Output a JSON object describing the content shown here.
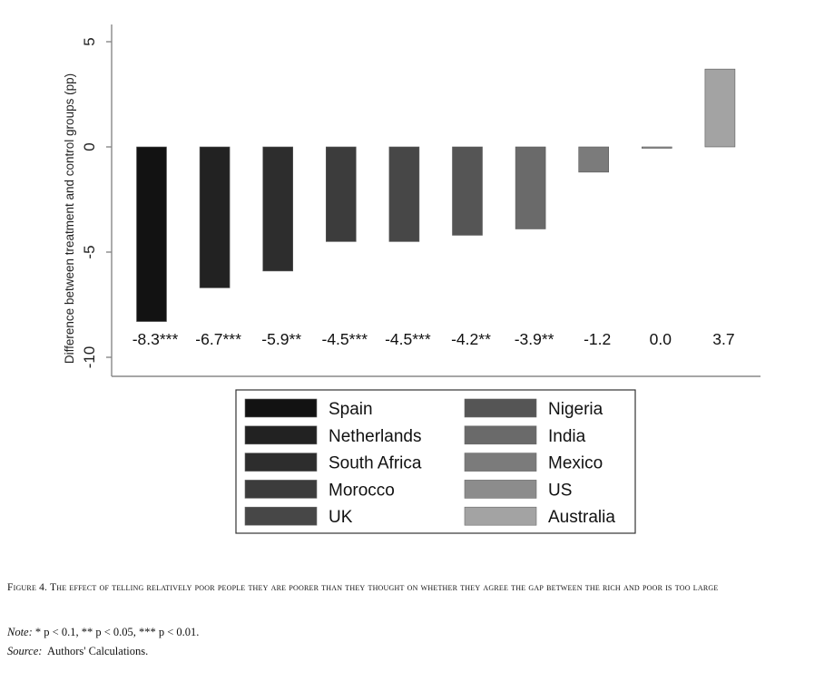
{
  "chart_data": {
    "type": "bar",
    "ylabel": "Difference between treatment and control groups (pp)",
    "ylim": [
      -10.8,
      5.9
    ],
    "yticks": [
      5,
      0,
      -5,
      -10
    ],
    "ytick_labels": [
      "5",
      "0",
      "-5",
      "-10"
    ],
    "categories": [
      "Spain",
      "Netherlands",
      "South Africa",
      "Morocco",
      "UK",
      "Nigeria",
      "India",
      "Mexico",
      "US",
      "Australia"
    ],
    "values": [
      -8.3,
      -6.7,
      -5.9,
      -4.5,
      -4.5,
      -4.2,
      -3.9,
      -1.2,
      0.0,
      3.7
    ],
    "data_labels": [
      "-8.3***",
      "-6.7***",
      "-5.9**",
      "-4.5***",
      "-4.5***",
      "-4.2**",
      "-3.9**",
      "-1.2",
      "0.0",
      "3.7"
    ],
    "colors": [
      "#121212",
      "#222222",
      "#2d2d2d",
      "#3c3c3c",
      "#474747",
      "#555555",
      "#6a6a6a",
      "#7b7b7b",
      "#8c8c8c",
      "#a3a3a3"
    ],
    "legend": {
      "placement": "bottom",
      "columns": 2,
      "entries": [
        "Spain",
        "Nigeria",
        "Netherlands",
        "India",
        "South Africa",
        "Mexico",
        "Morocco",
        "US",
        "UK",
        "Australia"
      ]
    },
    "grid": false
  },
  "caption": {
    "label": "Figure 4.",
    "text": "The effect of telling relatively poor people they are poorer than they thought on whether they agree the gap between the rich and poor is too large"
  },
  "note": {
    "label": "Note:",
    "text": "* p < 0.1, ** p < 0.05, *** p < 0.01."
  },
  "source": {
    "label": "Source:",
    "text": "Authors' Calculations."
  }
}
